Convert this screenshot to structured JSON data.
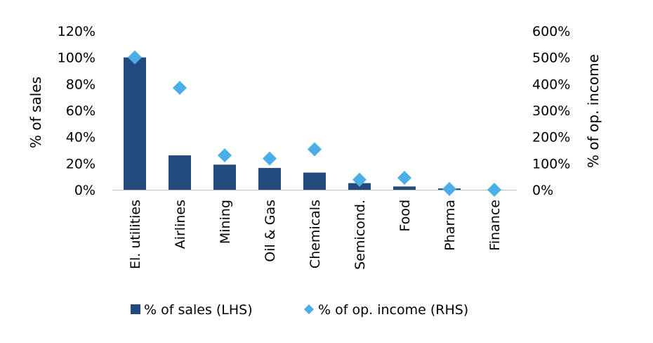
{
  "chart_data": {
    "type": "bar",
    "categories": [
      "El. utilities",
      "Airlines",
      "Mining",
      "Oil & Gas",
      "Chemicals",
      "Semicond.",
      "Food",
      "Pharma",
      "Finance"
    ],
    "series": [
      {
        "name": "% of sales (LHS)",
        "kind": "bar",
        "axis": "left",
        "color": "#234a7c",
        "values": [
          100,
          26,
          19,
          16.5,
          13,
          5,
          2.5,
          1,
          0
        ]
      },
      {
        "name": "% of op. income (RHS)",
        "kind": "diamond",
        "axis": "right",
        "color": "#4baee4",
        "values": [
          500,
          385,
          130,
          118,
          153,
          38,
          45,
          3,
          0
        ]
      }
    ],
    "ylabel_left": "% of sales",
    "ylabel_right": "% of op. income",
    "ylim_left": [
      0,
      120
    ],
    "ylim_right": [
      0,
      600
    ],
    "yticks_left": [
      "0%",
      "20%",
      "40%",
      "60%",
      "80%",
      "100%",
      "120%"
    ],
    "yticks_right": [
      "0%",
      "100%",
      "200%",
      "300%",
      "400%",
      "500%",
      "600%"
    ],
    "grid": false,
    "legend_position": "bottom"
  }
}
